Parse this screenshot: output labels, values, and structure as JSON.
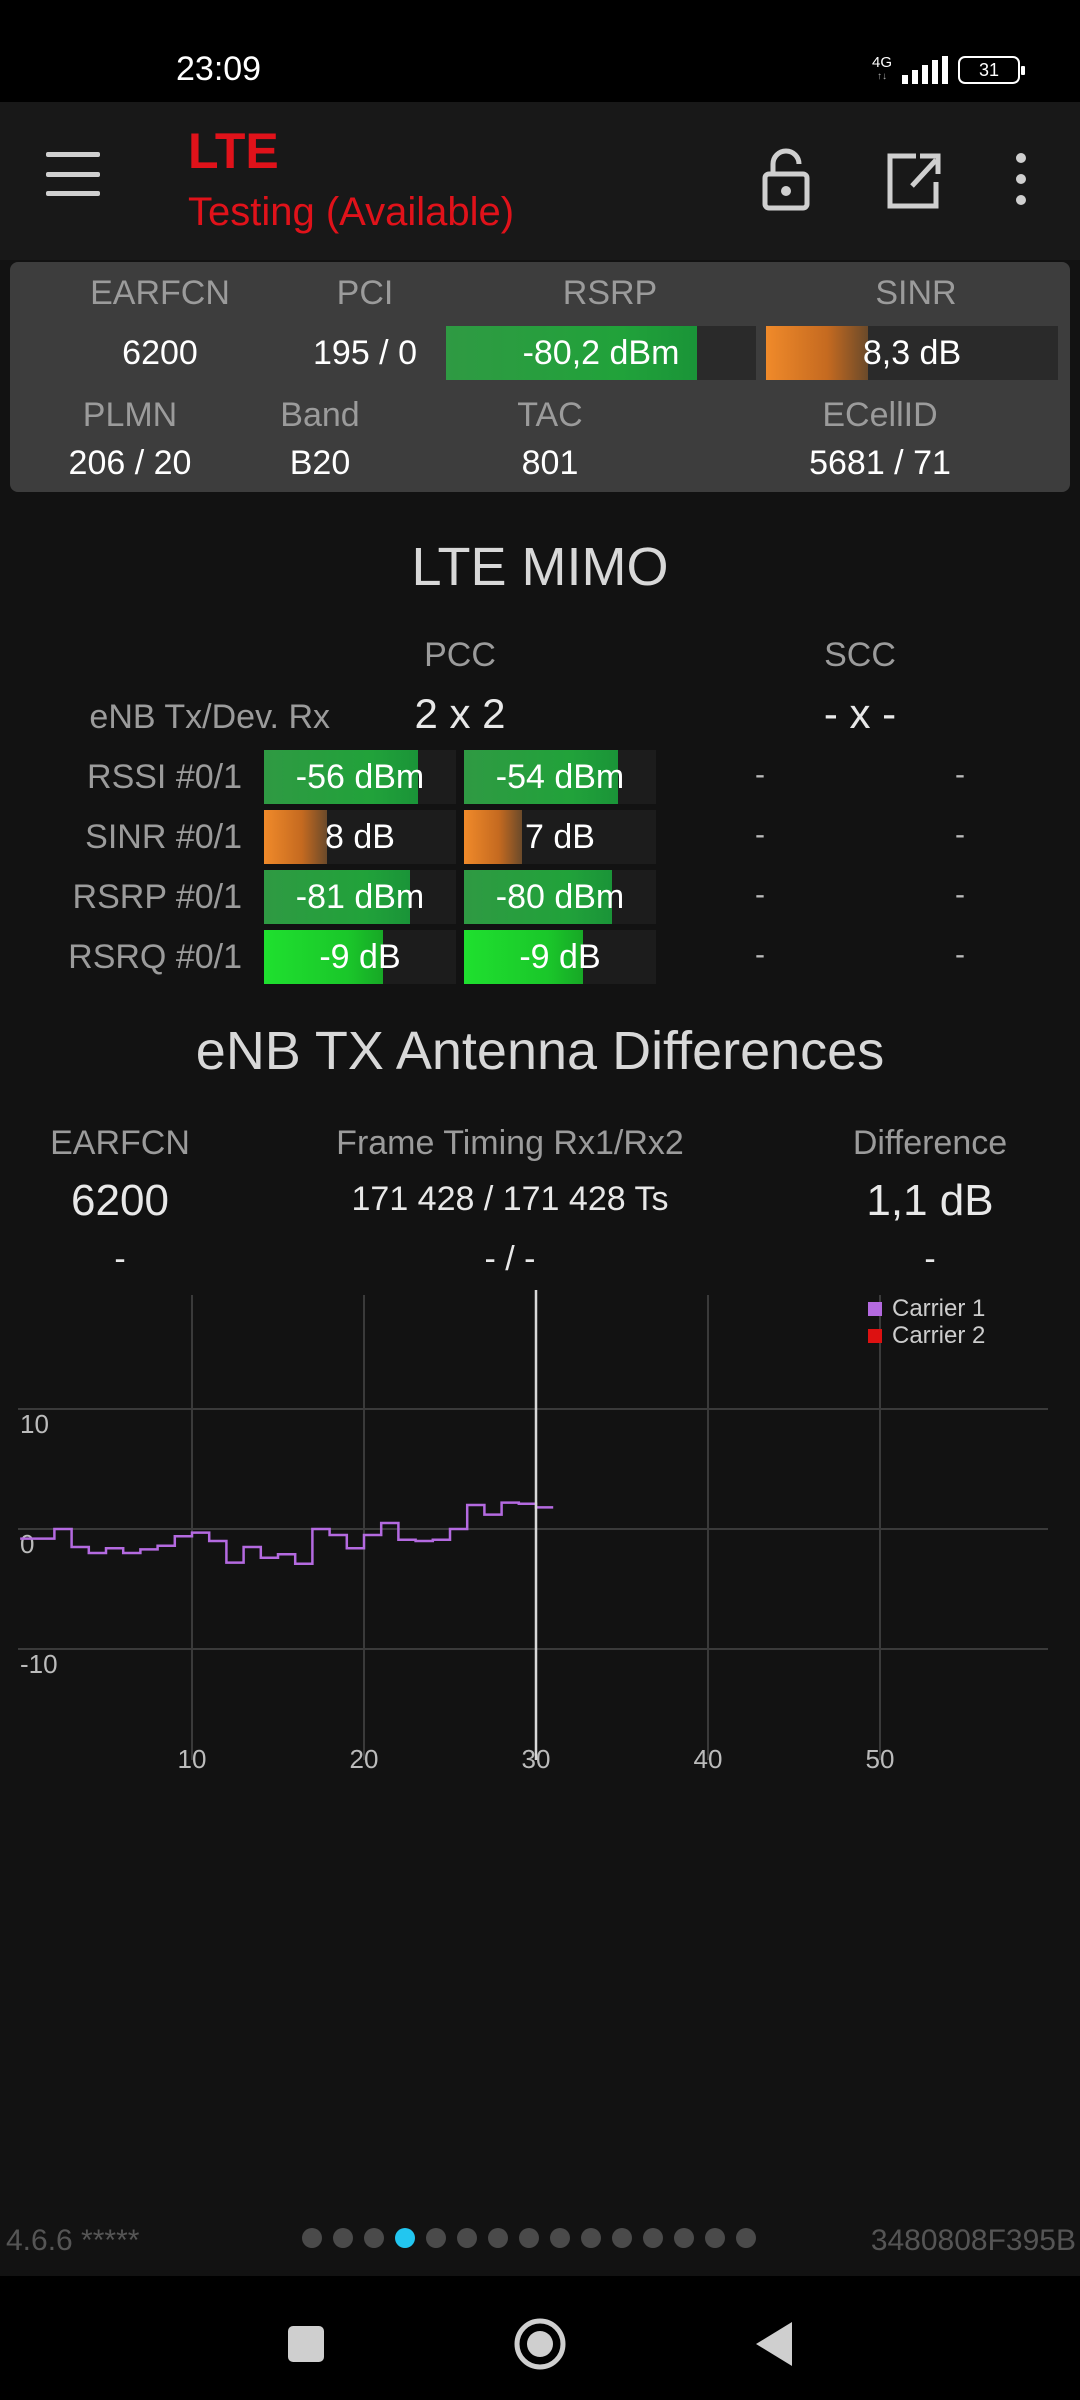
{
  "status_bar": {
    "time": "23:09",
    "network": "4G",
    "network_sub": "↑↓",
    "battery": "31"
  },
  "app_bar": {
    "title": "LTE",
    "subtitle": "Testing (Available)"
  },
  "header": {
    "labels": {
      "earfcn": "EARFCN",
      "pci": "PCI",
      "rsrp": "RSRP",
      "sinr": "SINR",
      "plmn": "PLMN",
      "band": "Band",
      "tac": "TAC",
      "ecellid": "ECellID"
    },
    "values": {
      "earfcn": "6200",
      "pci": "195 / 0",
      "rsrp": "-80,2 dBm",
      "sinr": "8,3 dB",
      "plmn": "206 / 20",
      "band": "B20",
      "tac": "801",
      "ecellid": "5681 / 71"
    },
    "rsrp_level": 0.81,
    "sinr_level": 0.35
  },
  "mimo": {
    "title": "LTE MIMO",
    "pcc_label": "PCC",
    "scc_label": "SCC",
    "tx_rx_label": "eNB Tx/Dev. Rx",
    "pcc_tx_rx": "2 x 2",
    "scc_tx_rx": "- x -",
    "rows": [
      {
        "label": "RSSI #0/1",
        "v0": "-56 dBm",
        "v1": "-54 dBm",
        "s0": "-",
        "s1": "-",
        "level0": 0.8,
        "level1": 0.8
      },
      {
        "label": "SINR #0/1",
        "v0": "8 dB",
        "v1": "7 dB",
        "s0": "-",
        "s1": "-",
        "level0": 0.33,
        "level1": 0.3
      },
      {
        "label": "RSRP #0/1",
        "v0": "-81 dBm",
        "v1": "-80 dBm",
        "s0": "-",
        "s1": "-",
        "level0": 0.76,
        "level1": 0.77
      },
      {
        "label": "RSRQ #0/1",
        "v0": "-9 dB",
        "v1": "-9 dB",
        "s0": "-",
        "s1": "-",
        "level0": 0.62,
        "level1": 0.62
      }
    ]
  },
  "antenna": {
    "title": "eNB TX Antenna Differences",
    "earfcn_label": "EARFCN",
    "timing_label": "Frame Timing Rx1/Rx2",
    "difference_label": "Difference",
    "earfcn_value": "6200",
    "timing_value": "171 428 / 171 428 Ts",
    "difference_value": "1,1 dB",
    "earfcn_value2": "-",
    "timing_value2": "- / -",
    "difference_value2": "-"
  },
  "chart_data": {
    "type": "line",
    "xlim": [
      1,
      60
    ],
    "ylim": [
      -15,
      20
    ],
    "x_ticks": [
      "10",
      "20",
      "30",
      "40",
      "50"
    ],
    "y_ticks": [
      "10",
      "0",
      "-10"
    ],
    "grid": true,
    "legend_position": "top-right",
    "cursor_x": 30,
    "series": [
      {
        "name": "Carrier 1",
        "color": "#b46ae0",
        "x": [
          1,
          2,
          3,
          4,
          5,
          6,
          7,
          8,
          9,
          10,
          11,
          12,
          13,
          14,
          15,
          16,
          17,
          18,
          19,
          20,
          21,
          22,
          23,
          24,
          25,
          26,
          27,
          28,
          29,
          30
        ],
        "y": [
          -0.8,
          0,
          -1.5,
          -2,
          -1.6,
          -2,
          -1.7,
          -1.4,
          -0.6,
          -0.3,
          -1,
          -2.8,
          -1.5,
          -2.4,
          -2.1,
          -2.9,
          0,
          -0.5,
          -1.6,
          -0.5,
          0.5,
          -0.9,
          -1,
          -0.9,
          0,
          2,
          1.2,
          2.2,
          2.1,
          1.8
        ]
      },
      {
        "name": "Carrier 2",
        "color": "#dd1111",
        "x": [],
        "y": []
      }
    ]
  },
  "footer": {
    "version": "4.6.6 *****",
    "device_id": "3480808F395B",
    "page_count": 15,
    "active_page": 4
  }
}
